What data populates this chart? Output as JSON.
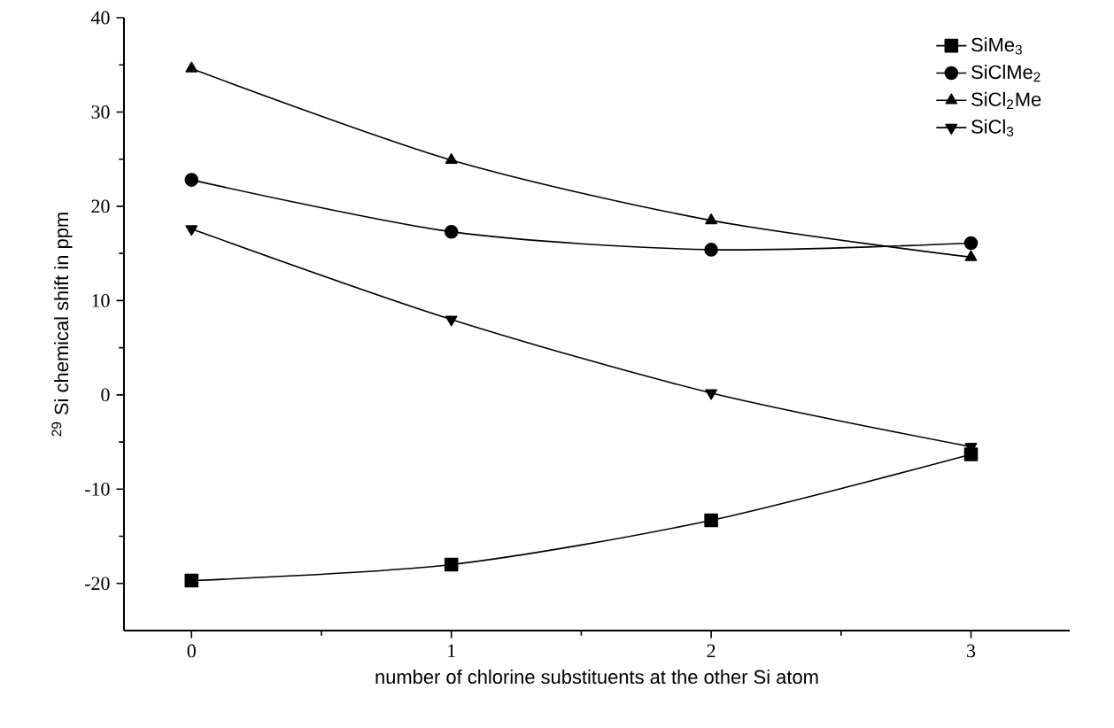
{
  "chart_data": {
    "type": "line",
    "xlabel": "number of chlorine substituents at the other Si atom",
    "ylabel": "$^{29}$ Si chemical shift in ppm",
    "x": [
      0,
      1,
      2,
      3
    ],
    "xlim": [
      -0.26,
      3.38
    ],
    "xticks": [
      0,
      1,
      2,
      3
    ],
    "ylim": [
      -25,
      40
    ],
    "yticks": [
      -20,
      -10,
      0,
      10,
      20,
      30,
      40
    ],
    "series": [
      {
        "name": "SiMe$_{3}$",
        "color": "#000000",
        "marker": "square",
        "values": [
          -19.7,
          -18,
          -13.3,
          -6.3
        ]
      },
      {
        "name": "SiClMe$_{2}$",
        "color": "#000000",
        "marker": "circle",
        "values": [
          22.8,
          17.3,
          15.4,
          16.1
        ]
      },
      {
        "name": "SiCl$_{2}$Me",
        "color": "#000000",
        "marker": "triangle",
        "values": [
          34.6,
          24.9,
          18.5,
          14.6
        ]
      },
      {
        "name": "SiCl$_{3}$",
        "color": "#000000",
        "marker": "triangle-down",
        "values": [
          17.6,
          8,
          0.2,
          -5.5
        ]
      }
    ],
    "line_style": "solid",
    "grid": false,
    "legend": "top right"
  }
}
